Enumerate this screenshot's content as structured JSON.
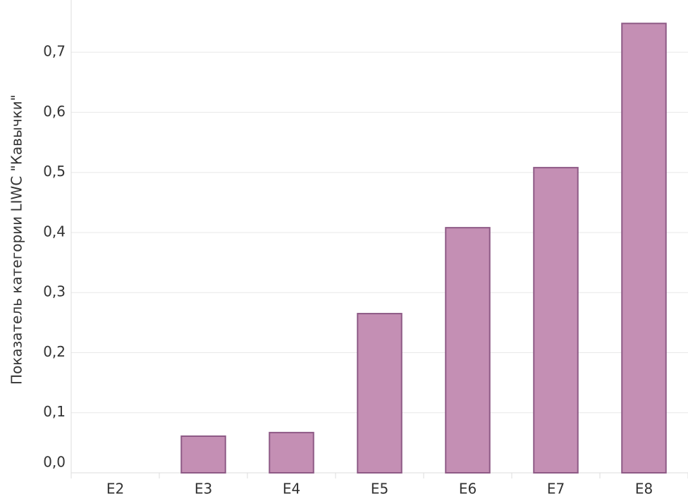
{
  "chart_data": {
    "type": "bar",
    "ylabel": "Показатель категории LIWC \"Кавычки\"",
    "categories": [
      "E2",
      "E3",
      "E4",
      "E5",
      "E6",
      "E7",
      "E8"
    ],
    "values": [
      0,
      0.061,
      0.067,
      0.265,
      0.408,
      0.508,
      0.748
    ],
    "color": "#c48fb4",
    "ylim": [
      0,
      0.787
    ],
    "yticks": [
      {
        "value": 0,
        "label": "0,0"
      },
      {
        "value": 0.1,
        "label": "0,1"
      },
      {
        "value": 0.2,
        "label": "0,2"
      },
      {
        "value": 0.3,
        "label": "0,3"
      },
      {
        "value": 0.4,
        "label": "0,4"
      },
      {
        "value": 0.5,
        "label": "0,5"
      },
      {
        "value": 0.6,
        "label": "0,6"
      },
      {
        "value": 0.7,
        "label": "0,7"
      }
    ],
    "grid": true
  }
}
